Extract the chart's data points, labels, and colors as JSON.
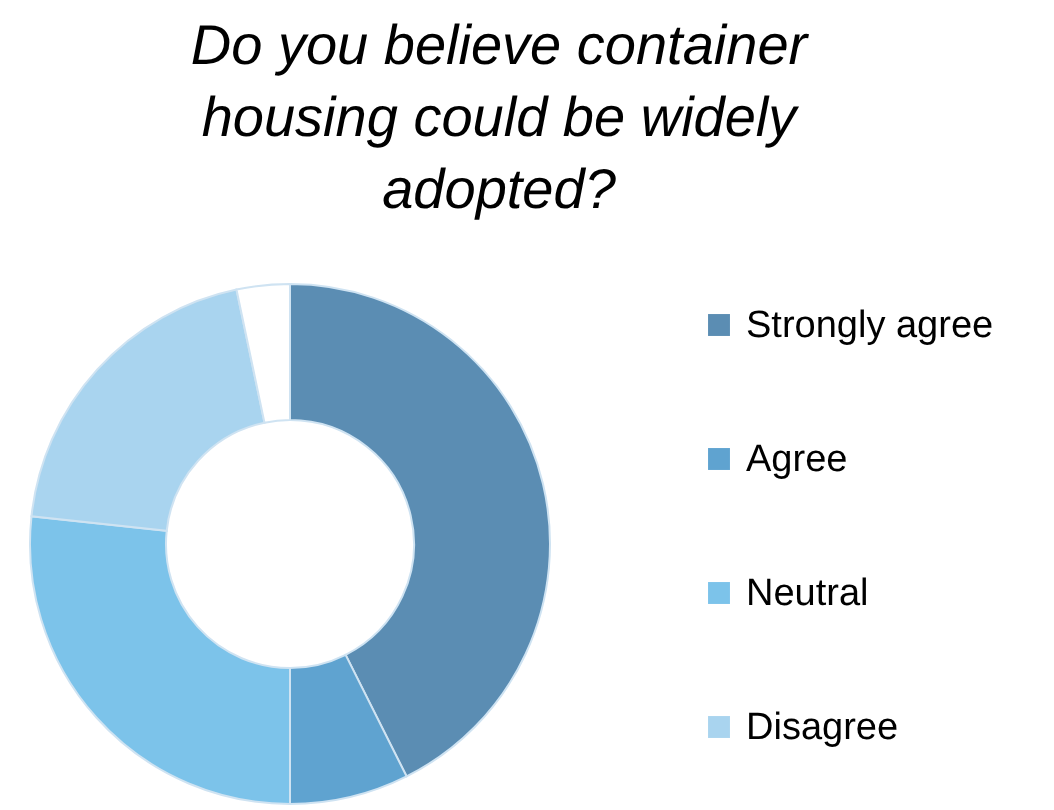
{
  "chart_data": {
    "type": "donut",
    "title": "Do you believe container housing could be widely adopted?",
    "categories": [
      "Strongly agree",
      "Agree",
      "Neutral",
      "Disagree",
      null
    ],
    "values": [
      42.6,
      7.4,
      26.7,
      20,
      3.3
    ],
    "colors": [
      "#5b8db3",
      "#5fa3d0",
      "#7cc3ea",
      "#a9d4ef",
      "#ffffff"
    ],
    "legend": "right"
  }
}
